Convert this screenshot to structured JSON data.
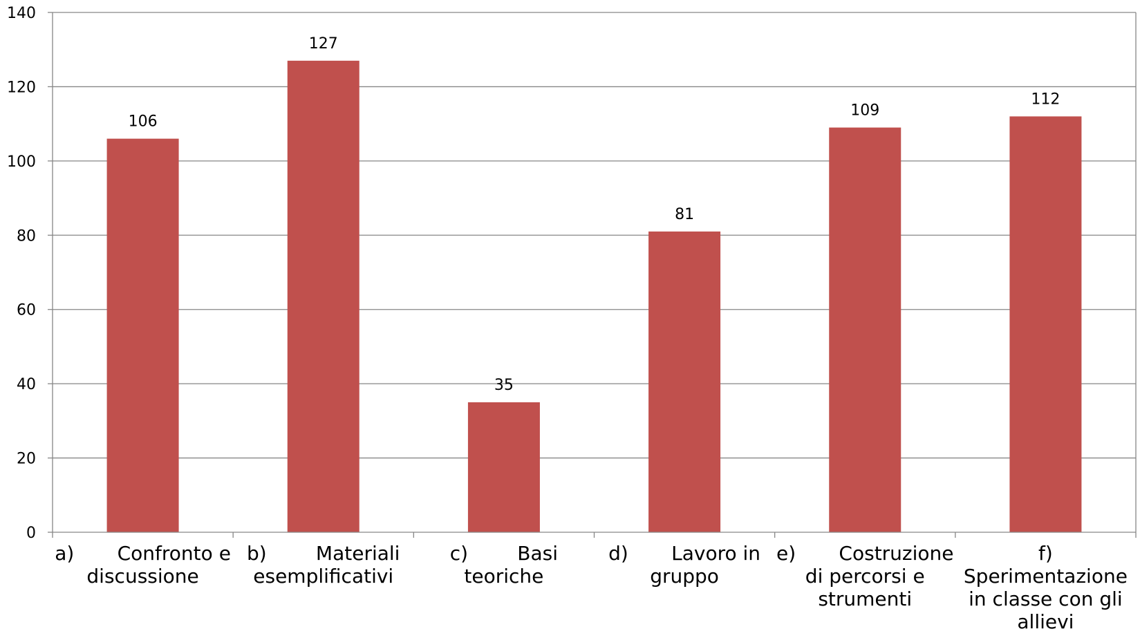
{
  "chart_data": {
    "type": "bar",
    "categories": [
      [
        "a)       Confronto e",
        "discussione"
      ],
      [
        "b)        Materiali",
        "esemplificativi"
      ],
      [
        "c)        Basi",
        "teoriche"
      ],
      [
        "d)       Lavoro in",
        "gruppo"
      ],
      [
        "e)       Costruzione",
        "di percorsi e",
        "strumenti"
      ],
      [
        "f)",
        "Sperimentazione",
        "in classe con gli",
        "allievi"
      ]
    ],
    "values": [
      106,
      127,
      35,
      81,
      109,
      112
    ],
    "ylim": [
      0,
      140
    ],
    "yticks": [
      0,
      20,
      40,
      60,
      80,
      100,
      120,
      140
    ],
    "grid": true,
    "legend": "none",
    "bar_color": "#C0504D",
    "grid_color": "#868686",
    "axis_color": "#868686"
  }
}
